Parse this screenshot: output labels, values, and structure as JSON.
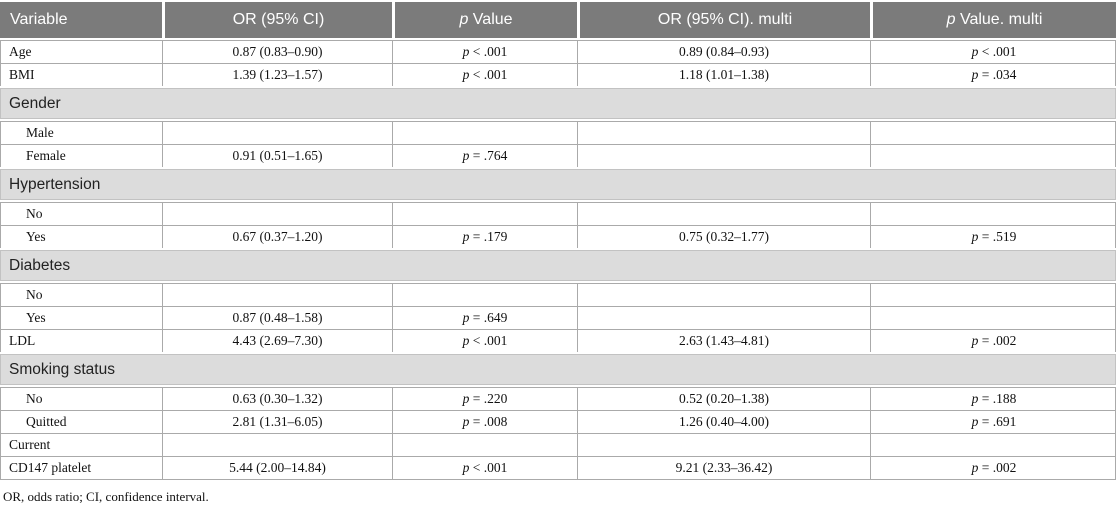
{
  "colors": {
    "header_bg": "#7b7b7b",
    "header_text": "#ffffff",
    "section_bg": "#dcdcdc",
    "line": "#aaaaaa",
    "section_line": "#c2c2c2",
    "text": "#111111"
  },
  "table": {
    "columns": [
      "Variable",
      "OR (95% CI)",
      "p Value",
      "OR (95% CI). multi",
      "p Value. multi"
    ]
  },
  "rows": [
    {
      "type": "data",
      "label": "Age",
      "or": "0.87 (0.83–0.90)",
      "p": "p < .001",
      "or_multi": "0.89 (0.84–0.93)",
      "p_multi": "p < .001"
    },
    {
      "type": "data",
      "label": "BMI",
      "or": "1.39 (1.23–1.57)",
      "p": "p < .001",
      "or_multi": "1.18 (1.01–1.38)",
      "p_multi": "p = .034"
    },
    {
      "type": "section",
      "label": "Gender"
    },
    {
      "type": "data",
      "label": "Male",
      "or": "",
      "p": "",
      "or_multi": "",
      "p_multi": ""
    },
    {
      "type": "data",
      "label": "Female",
      "or": "0.91 (0.51–1.65)",
      "p": "p = .764",
      "or_multi": "",
      "p_multi": ""
    },
    {
      "type": "section",
      "label": "Hypertension"
    },
    {
      "type": "data",
      "label": "No",
      "or": "",
      "p": "",
      "or_multi": "",
      "p_multi": ""
    },
    {
      "type": "data",
      "label": "Yes",
      "or": "0.67 (0.37–1.20)",
      "p": "p = .179",
      "or_multi": "0.75 (0.32–1.77)",
      "p_multi": "p = .519"
    },
    {
      "type": "section",
      "label": "Diabetes"
    },
    {
      "type": "data",
      "label": "No",
      "or": "",
      "p": "",
      "or_multi": "",
      "p_multi": ""
    },
    {
      "type": "data",
      "label": "Yes",
      "or": "0.87 (0.48–1.58)",
      "p": "p = .649",
      "or_multi": "",
      "p_multi": ""
    },
    {
      "type": "data",
      "label": "LDL",
      "or": "4.43 (2.69–7.30)",
      "p": "p < .001",
      "or_multi": "2.63 (1.43–4.81)",
      "p_multi": "p = .002"
    },
    {
      "type": "section",
      "label": "Smoking status"
    },
    {
      "type": "data",
      "label": "No",
      "or": "0.63 (0.30–1.32)",
      "p": "p = .220",
      "or_multi": "0.52 (0.20–1.38)",
      "p_multi": "p = .188"
    },
    {
      "type": "data",
      "label": "Quitted",
      "or": "2.81 (1.31–6.05)",
      "p": "p = .008",
      "or_multi": "1.26 (0.40–4.00)",
      "p_multi": "p = .691"
    },
    {
      "type": "data",
      "label": "Current",
      "or": "",
      "p": "",
      "or_multi": "",
      "p_multi": ""
    },
    {
      "type": "data",
      "label": "CD147 platelet",
      "or": "5.44 (2.00–14.84)",
      "p": "p < .001",
      "or_multi": "9.21 (2.33–36.42)",
      "p_multi": "p = .002"
    }
  ],
  "footnote": "OR, odds ratio; CI, confidence interval."
}
